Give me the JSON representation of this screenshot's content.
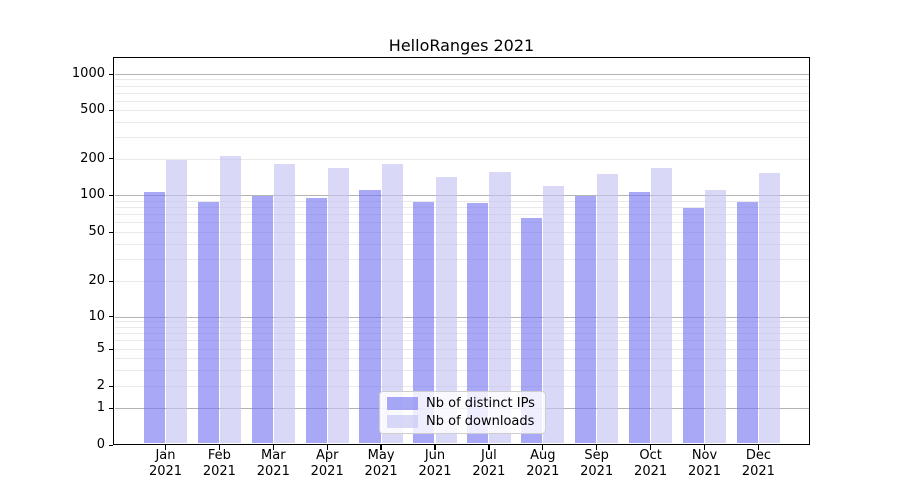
{
  "title": "HelloRanges 2021",
  "chart_data": {
    "type": "bar",
    "title": "HelloRanges 2021",
    "categories": [
      "Jan",
      "Feb",
      "Mar",
      "Apr",
      "May",
      "Jun",
      "Jul",
      "Aug",
      "Sep",
      "Oct",
      "Nov",
      "Dec"
    ],
    "category_year": "2021",
    "series": [
      {
        "name": "Nb of distinct IPs",
        "color": "#7a7af2",
        "alpha": 0.65,
        "values": [
          105,
          88,
          98,
          95,
          110,
          88,
          86,
          65,
          98,
          105,
          78,
          88
        ]
      },
      {
        "name": "Nb of downloads",
        "color": "#c5c5f2",
        "alpha": 0.65,
        "values": [
          195,
          210,
          181,
          166,
          181,
          141,
          155,
          119,
          149,
          167,
          111,
          151
        ]
      }
    ],
    "xlabel": "",
    "ylabel": "",
    "yscale": "symlog",
    "y_ticks": [
      0,
      1,
      2,
      5,
      10,
      20,
      50,
      100,
      200,
      500,
      1000
    ],
    "ylim": [
      0,
      1370
    ],
    "grid": true,
    "legend_position": "lower center",
    "legend_labels": [
      "Nb of distinct IPs",
      "Nb of downloads"
    ]
  },
  "colors": {
    "bar_dark": "#7a7af2",
    "bar_light": "#c5c5f2",
    "grid_major": "#b3b3b3",
    "grid_minor": "#e9e9e9",
    "axis": "#000000",
    "background": "#ffffff"
  }
}
